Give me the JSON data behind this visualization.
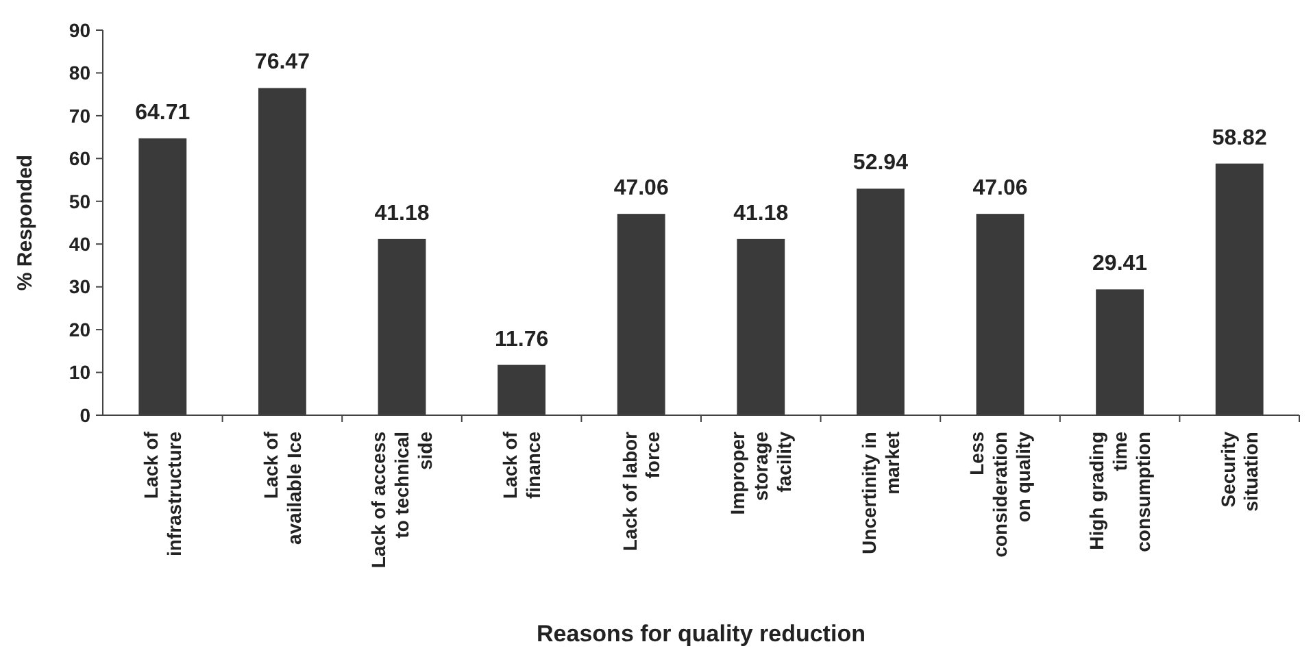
{
  "chart_data": {
    "type": "bar",
    "xlabel": "Reasons for quality reduction",
    "ylabel": "% Responded",
    "categories": [
      "Lack of infrastructure",
      "Lack of available Ice",
      "Lack of access to technical side",
      "Lack of finance",
      "Lack of labor force",
      "Improper storage facility",
      "Uncertinity in market",
      "Less consideration on quality",
      "High grading time consumption",
      "Security situation"
    ],
    "values": [
      64.71,
      76.47,
      41.18,
      11.76,
      47.06,
      41.18,
      52.94,
      47.06,
      29.41,
      58.82
    ],
    "color": "#3a3a3a",
    "ylim": [
      0,
      90
    ],
    "yticks": [
      0,
      10,
      20,
      30,
      40,
      50,
      60,
      70,
      80,
      90
    ],
    "data_labels": true
  }
}
